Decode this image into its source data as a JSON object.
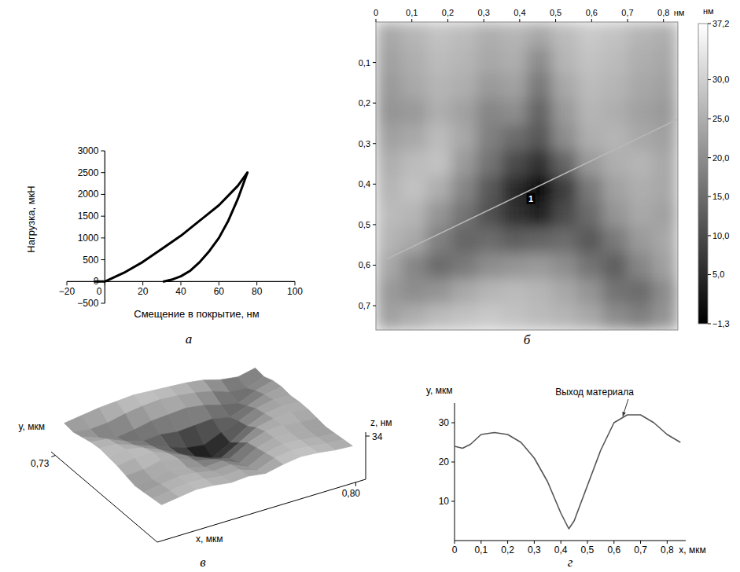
{
  "chart_data": [
    {
      "type": "line",
      "panel": "а",
      "xlabel": "Смещение в покрытие, нм",
      "ylabel": "Нагрузка, мкН",
      "xlim": [
        -20,
        100
      ],
      "ylim": [
        -500,
        3000
      ],
      "xticks": [
        {
          "value": -20,
          "label": "−20"
        },
        0,
        20,
        40,
        60,
        80,
        100
      ],
      "yticks": [
        {
          "value": -500,
          "label": "−500"
        },
        0,
        500,
        1000,
        1500,
        2000,
        2500,
        3000
      ],
      "series": [
        {
          "color": "#000000",
          "x": [
            -5,
            0,
            10,
            20,
            30,
            40,
            50,
            60,
            70,
            75
          ],
          "values": [
            0,
            0,
            200,
            450,
            750,
            1050,
            1400,
            1750,
            2200,
            2500
          ]
        },
        {
          "color": "#000000",
          "x": [
            75,
            70,
            65,
            60,
            55,
            50,
            45,
            40,
            35,
            31
          ],
          "values": [
            2500,
            1900,
            1400,
            1000,
            700,
            450,
            250,
            120,
            40,
            0
          ]
        }
      ]
    },
    {
      "type": "heatmap",
      "panel": "б",
      "xlabel": "нм",
      "xlim": [
        0,
        0.84
      ],
      "ylim": [
        0,
        0.76
      ],
      "xticks": [
        0,
        {
          "value": 0.1,
          "label": "0,1"
        },
        {
          "value": 0.2,
          "label": "0,2"
        },
        {
          "value": 0.3,
          "label": "0,3"
        },
        {
          "value": 0.4,
          "label": "0,4"
        },
        {
          "value": 0.5,
          "label": "0,5"
        },
        {
          "value": 0.6,
          "label": "0,6"
        },
        {
          "value": 0.7,
          "label": "0,7"
        },
        {
          "value": 0.8,
          "label": "0,8"
        }
      ],
      "yticks": [
        {
          "value": 0.1,
          "label": "0,1"
        },
        {
          "value": 0.2,
          "label": "0,2"
        },
        {
          "value": 0.3,
          "label": "0,3"
        },
        {
          "value": 0.4,
          "label": "0,4"
        },
        {
          "value": 0.5,
          "label": "0,5"
        },
        {
          "value": 0.6,
          "label": "0,6"
        },
        {
          "value": 0.7,
          "label": "0,7"
        }
      ],
      "cells": [
        [
          24,
          26,
          28,
          27,
          25,
          26,
          24,
          27,
          29,
          28,
          26,
          25
        ],
        [
          23,
          25,
          27,
          26,
          24,
          25,
          20,
          26,
          28,
          27,
          25,
          24
        ],
        [
          22,
          24,
          26,
          25,
          22,
          23,
          17,
          24,
          27,
          26,
          24,
          23
        ],
        [
          21,
          22,
          25,
          23,
          19,
          20,
          14,
          22,
          26,
          25,
          23,
          22
        ],
        [
          23,
          24,
          27,
          24,
          18,
          15,
          12,
          20,
          25,
          26,
          24,
          23
        ],
        [
          25,
          27,
          28,
          22,
          16,
          10,
          6,
          14,
          22,
          25,
          26,
          24
        ],
        [
          26,
          28,
          25,
          19,
          12,
          5,
          0,
          8,
          17,
          23,
          25,
          24
        ],
        [
          27,
          26,
          21,
          16,
          11,
          6,
          4,
          10,
          15,
          21,
          24,
          23
        ],
        [
          26,
          24,
          18,
          14,
          15,
          13,
          14,
          15,
          12,
          17,
          22,
          24
        ],
        [
          24,
          19,
          15,
          17,
          20,
          21,
          22,
          20,
          16,
          13,
          19,
          23
        ],
        [
          22,
          20,
          21,
          24,
          26,
          27,
          26,
          24,
          21,
          16,
          15,
          20
        ],
        [
          23,
          25,
          27,
          28,
          29,
          28,
          27,
          26,
          24,
          20,
          18,
          21
        ]
      ],
      "colorbar": {
        "label": "нм",
        "range": [
          -1.3,
          37.2
        ],
        "ticks": [
          {
            "value": -1.3,
            "label": "−1,3"
          },
          {
            "value": 5,
            "label": "5,0"
          },
          {
            "value": 10,
            "label": "10,0"
          },
          {
            "value": 15,
            "label": "15,0"
          },
          {
            "value": 20,
            "label": "20,0"
          },
          {
            "value": 25,
            "label": "25,0"
          },
          {
            "value": 30,
            "label": "30,0"
          },
          {
            "value": 37.2,
            "label": "37,2"
          }
        ]
      },
      "profile_line": {
        "x": [
          0.03,
          0.84
        ],
        "y": [
          0.585,
          0.24
        ]
      },
      "point_label": {
        "text": "1",
        "x": 0.43,
        "y": 0.42
      }
    },
    {
      "type": "surface",
      "panel": "в",
      "xlabel": "x, мкм",
      "ylabel": "y, мкм",
      "zlabel": "z, нм",
      "xlim": [
        0,
        0.84
      ],
      "ylim": [
        0,
        0.76
      ],
      "zlim": [
        -1.3,
        37.2
      ],
      "xticks": [
        {
          "value": 0.8,
          "label": "0,80"
        }
      ],
      "yticks": [
        {
          "value": 0.73,
          "label": "0,73"
        }
      ],
      "zticks": [
        34
      ],
      "cells": [
        [
          24,
          26,
          28,
          27,
          25,
          26,
          24,
          27,
          29,
          28,
          26,
          25
        ],
        [
          23,
          25,
          27,
          26,
          24,
          25,
          20,
          26,
          28,
          27,
          25,
          24
        ],
        [
          22,
          24,
          26,
          25,
          22,
          23,
          17,
          24,
          27,
          26,
          24,
          23
        ],
        [
          21,
          22,
          25,
          23,
          19,
          20,
          14,
          22,
          26,
          25,
          23,
          22
        ],
        [
          23,
          24,
          27,
          24,
          18,
          15,
          12,
          20,
          25,
          26,
          24,
          23
        ],
        [
          25,
          27,
          28,
          22,
          16,
          10,
          6,
          14,
          22,
          25,
          26,
          24
        ],
        [
          26,
          28,
          25,
          19,
          12,
          5,
          0,
          8,
          17,
          23,
          25,
          24
        ],
        [
          27,
          26,
          21,
          16,
          11,
          6,
          4,
          10,
          15,
          21,
          24,
          23
        ],
        [
          26,
          24,
          18,
          14,
          15,
          13,
          14,
          15,
          12,
          17,
          22,
          24
        ],
        [
          24,
          19,
          15,
          17,
          20,
          21,
          22,
          20,
          16,
          13,
          19,
          23
        ],
        [
          22,
          20,
          21,
          24,
          26,
          27,
          26,
          24,
          21,
          16,
          15,
          20
        ],
        [
          23,
          25,
          27,
          28,
          29,
          28,
          27,
          26,
          24,
          20,
          18,
          21
        ]
      ]
    },
    {
      "type": "line",
      "panel": "г",
      "xlabel": "x, мкм",
      "ylabel": "y, мкм",
      "xlim": [
        0,
        0.87
      ],
      "ylim": [
        0,
        35
      ],
      "xticks": [
        0,
        {
          "value": 0.1,
          "label": "0,1"
        },
        {
          "value": 0.2,
          "label": "0,2"
        },
        {
          "value": 0.3,
          "label": "0,3"
        },
        {
          "value": 0.4,
          "label": "0,4"
        },
        {
          "value": 0.5,
          "label": "0,5"
        },
        {
          "value": 0.6,
          "label": "0,6"
        },
        {
          "value": 0.7,
          "label": "0,7"
        },
        {
          "value": 0.8,
          "label": "0,8"
        }
      ],
      "yticks": [
        10,
        20,
        30
      ],
      "color": "#555555",
      "x": [
        0,
        0.03,
        0.06,
        0.1,
        0.15,
        0.2,
        0.25,
        0.3,
        0.35,
        0.4,
        0.43,
        0.45,
        0.5,
        0.55,
        0.6,
        0.65,
        0.7,
        0.75,
        0.8,
        0.85
      ],
      "values": [
        24,
        23.5,
        24.5,
        27,
        27.5,
        27,
        25,
        21,
        15,
        7,
        3,
        5,
        14,
        23,
        30,
        32,
        32,
        30,
        27,
        25
      ],
      "annotations": [
        {
          "text": "Выход материала",
          "x": 0.63,
          "y": 31
        }
      ]
    }
  ]
}
